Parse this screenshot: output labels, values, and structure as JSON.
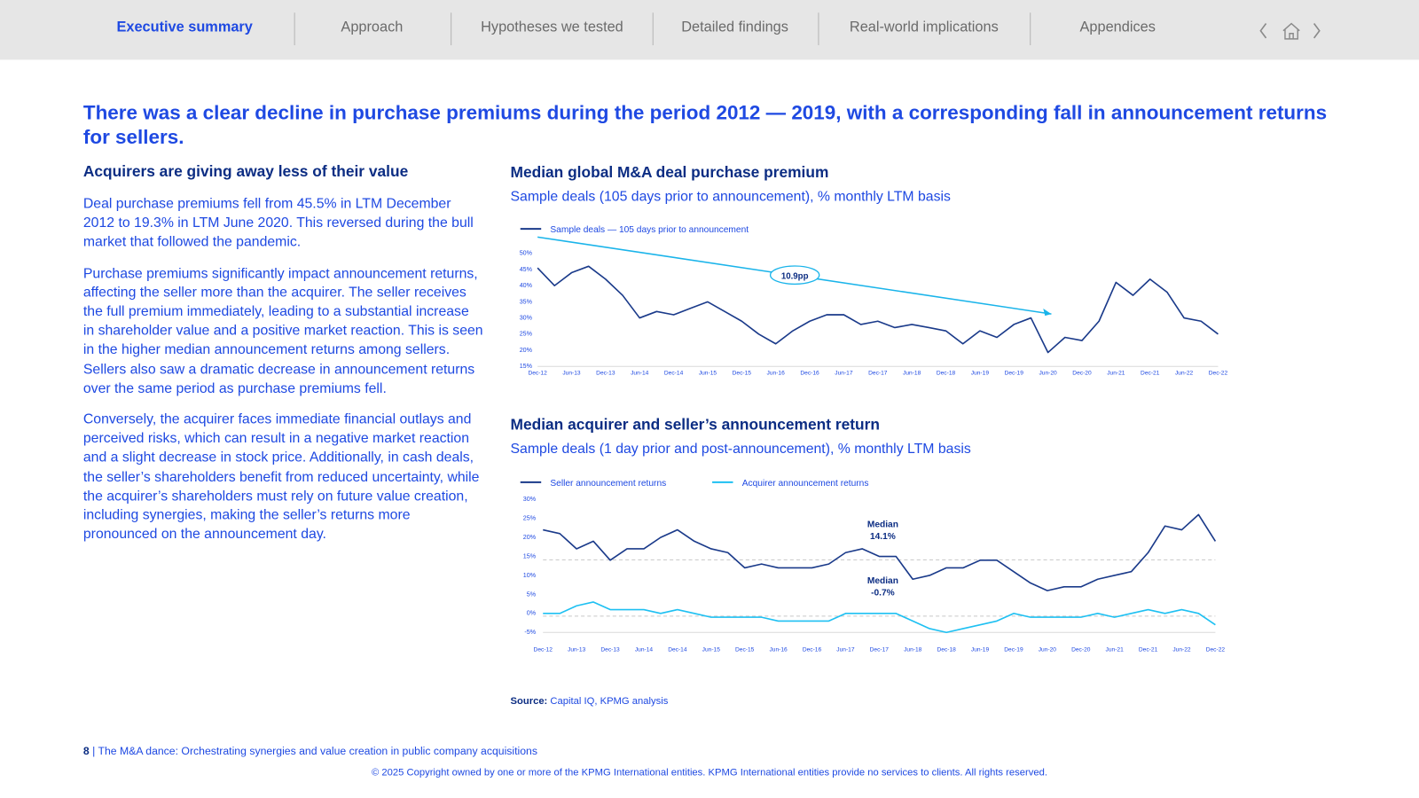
{
  "nav": {
    "items": [
      "Executive summary",
      "Approach",
      "Hypotheses we tested",
      "Detailed findings",
      "Real-world implications",
      "Appendices"
    ],
    "active": 0
  },
  "heading": "There was a clear decline in purchase premiums during the period 2012 — 2019, with a corresponding fall in announcement returns for sellers.",
  "left": {
    "subheading": "Acquirers are giving away less of their value",
    "paragraphs": [
      "Deal purchase premiums fell from 45.5% in LTM December 2012 to 19.3% in LTM June 2020. This reversed during the bull market that followed the pandemic.",
      "Purchase premiums significantly impact announcement returns, affecting the seller more than the acquirer. The seller receives the full premium immediately, leading to a substantial increase in shareholder value and a positive market reaction. This is seen in the higher median announcement returns among sellers. Sellers also saw a dramatic decrease in announcement returns over the same period as purchase premiums fell.",
      "Conversely, the acquirer faces immediate financial outlays and perceived risks, which can result in a negative market reaction and a slight decrease in stock price. Additionally, in cash deals, the seller’s shareholders benefit from reduced uncertainty, while the acquirer’s shareholders must rely on future value creation, including synergies, making the seller’s returns more pronounced on the announcement day."
    ]
  },
  "chart_data": [
    {
      "type": "line",
      "title": "Median global M&A deal purchase premium",
      "subtitle": "Sample deals (105 days prior to announcement), % monthly LTM basis",
      "categories": [
        "Dec-12",
        null,
        "Jun-13",
        null,
        "Dec-13",
        null,
        "Jun-14",
        null,
        "Dec-14",
        null,
        "Jun-15",
        null,
        "Dec-15",
        null,
        "Jun-16",
        null,
        "Dec-16",
        null,
        "Jun-17",
        null,
        "Dec-17",
        null,
        "Jun-18",
        null,
        "Dec-18",
        null,
        "Jun-19",
        null,
        "Dec-19",
        null,
        "Jun-20",
        null,
        "Dec-20",
        null,
        "Jun-21",
        null,
        "Dec-21",
        null,
        "Jun-22",
        null,
        "Dec-22"
      ],
      "series": [
        {
          "name": "Sample deals — 105 days prior to announcement",
          "color": "#1a3a8a",
          "values": [
            45.5,
            40,
            44,
            46,
            42,
            37,
            30,
            32,
            31,
            33,
            35,
            32,
            29,
            25,
            22,
            26,
            29,
            31,
            31,
            28,
            29,
            27,
            28,
            27,
            26,
            22,
            26,
            24,
            28,
            30,
            19.3,
            24,
            23,
            29,
            41,
            37,
            42,
            38,
            30,
            29,
            25
          ]
        }
      ],
      "ylim": [
        15,
        50
      ],
      "yticks": [
        {
          "value": 15,
          "label": "15%"
        },
        {
          "value": 20,
          "label": "20%"
        },
        {
          "value": 25,
          "label": "25%"
        },
        {
          "value": 30,
          "label": "30%"
        },
        {
          "value": 35,
          "label": "35%"
        },
        {
          "value": 40,
          "label": "40%"
        },
        {
          "value": 45,
          "label": "45%"
        },
        {
          "value": 50,
          "label": "50%"
        }
      ],
      "grid": false,
      "trend_label": "10.9pp",
      "trend_color": "#1ab4ea"
    },
    {
      "type": "line",
      "title": "Median acquirer and seller’s announcement return",
      "subtitle": "Sample deals (1 day prior and post-announcement), % monthly LTM basis",
      "categories": [
        "Dec-12",
        null,
        "Jun-13",
        null,
        "Dec-13",
        null,
        "Jun-14",
        null,
        "Dec-14",
        null,
        "Jun-15",
        null,
        "Dec-15",
        null,
        "Jun-16",
        null,
        "Dec-16",
        null,
        "Jun-17",
        null,
        "Dec-17",
        null,
        "Jun-18",
        null,
        "Dec-18",
        null,
        "Jun-19",
        null,
        "Dec-19",
        null,
        "Jun-20",
        null,
        "Dec-20",
        null,
        "Jun-21",
        null,
        "Dec-21",
        null,
        "Jun-22",
        null,
        "Dec-22"
      ],
      "series": [
        {
          "name": "Seller announcement returns",
          "color": "#1a3a8a",
          "values": [
            22,
            21,
            17,
            19,
            14,
            17,
            17,
            20,
            22,
            19,
            17,
            16,
            12,
            13,
            12,
            12,
            12,
            13,
            16,
            17,
            15,
            15,
            9,
            10,
            12,
            12,
            14,
            14,
            11,
            8,
            6,
            7,
            7,
            9,
            10,
            11,
            16,
            23,
            22,
            26,
            19
          ]
        },
        {
          "name": "Acquirer announcement returns",
          "color": "#1ec0f2",
          "values": [
            0,
            0,
            2,
            3,
            1,
            1,
            1,
            0,
            1,
            0,
            -1,
            -1,
            -1,
            -1,
            -2,
            -2,
            -2,
            -2,
            0,
            0,
            0,
            0,
            -2,
            -4,
            -5,
            -4,
            -3,
            -2,
            0,
            -1,
            -1,
            -1,
            -1,
            0,
            -1,
            0,
            1,
            0,
            1,
            0,
            -3
          ]
        }
      ],
      "ylim": [
        -5,
        30
      ],
      "yticks": [
        {
          "value": -5,
          "label": "-5%"
        },
        {
          "value": 0,
          "label": "0%"
        },
        {
          "value": 5,
          "label": "5%"
        },
        {
          "value": 10,
          "label": "10%"
        },
        {
          "value": 15,
          "label": "15%"
        },
        {
          "value": 20,
          "label": "20%"
        },
        {
          "value": 25,
          "label": "25%"
        },
        {
          "value": 30,
          "label": "30%"
        }
      ],
      "grid": false,
      "annotations": [
        {
          "label": "Median",
          "value": 14.1,
          "value_label": "14.1%"
        },
        {
          "label": "Median",
          "value": -0.7,
          "value_label": "-0.7%"
        }
      ]
    }
  ],
  "source": {
    "label": "Source:",
    "text": "Capital IQ, KPMG analysis"
  },
  "footer": {
    "page_number": 8,
    "separator": "|",
    "doc_title": "The M&A dance: Orchestrating synergies and value creation in public company acquisitions",
    "copyright": "© 2025 Copyright owned by one or more of the KPMG International entities. KPMG International entities provide no services to clients. All rights reserved."
  }
}
